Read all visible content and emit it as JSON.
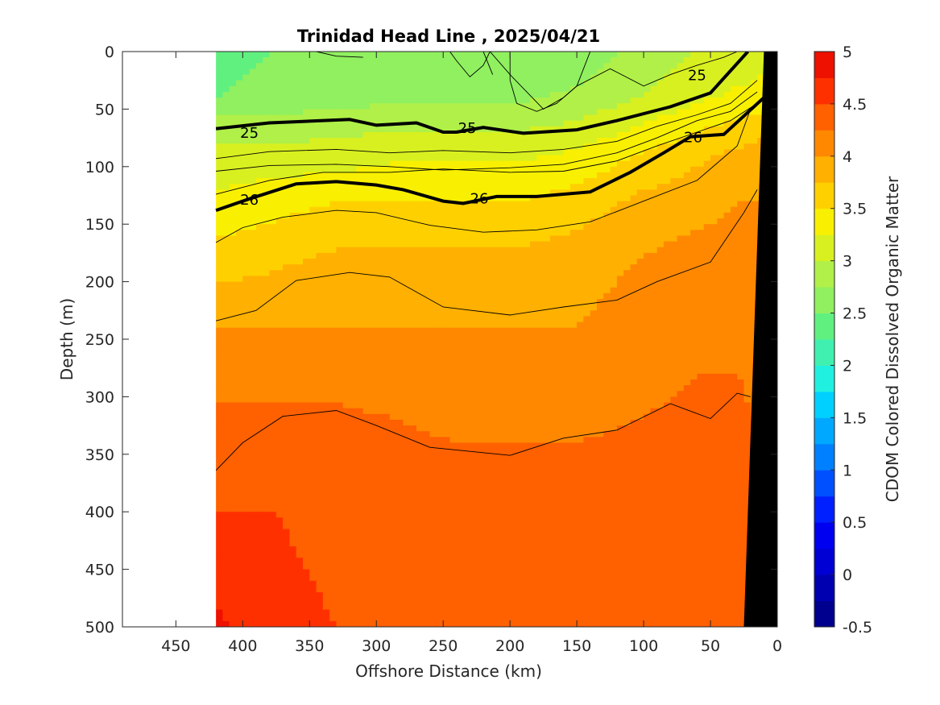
{
  "chart_data": {
    "type": "heatmap",
    "title": "Trinidad Head Line , 2025/04/21",
    "xlabel": "Offshore Distance (km)",
    "ylabel": "Depth (m)",
    "xlim": [
      490,
      0
    ],
    "ylim": [
      0,
      500
    ],
    "x_reversed": true,
    "y_reversed": true,
    "xticks": [
      450,
      400,
      350,
      300,
      250,
      200,
      150,
      100,
      50,
      0
    ],
    "yticks": [
      0,
      50,
      100,
      150,
      200,
      250,
      300,
      350,
      400,
      450,
      500
    ],
    "colorbar": {
      "label": "CDOM Colored Dissolved Organic Matter",
      "range": [
        -0.5,
        5
      ],
      "ticks": [
        "-0.5",
        "0",
        "0.5",
        "1",
        "1.5",
        "2",
        "2.5",
        "3",
        "3.5",
        "4",
        "4.5",
        "5"
      ],
      "levels": [
        -0.5,
        -0.25,
        0,
        0.25,
        0.5,
        0.75,
        1,
        1.25,
        1.5,
        1.75,
        2,
        2.25,
        2.5,
        2.75,
        3,
        3.25,
        3.5,
        3.75,
        4,
        4.25,
        4.5,
        4.75,
        5
      ],
      "colors": [
        "#00008f",
        "#0000b0",
        "#0000d4",
        "#0000f0",
        "#0020ff",
        "#0050ff",
        "#0080ff",
        "#00a8ff",
        "#00d0ff",
        "#20f0e0",
        "#40f0b0",
        "#60f080",
        "#90f060",
        "#b0f048",
        "#d8f020",
        "#f8f000",
        "#ffd000",
        "#ffb000",
        "#ff8800",
        "#ff6000",
        "#ff3000",
        "#ee1000",
        "#c00000"
      ]
    },
    "field_rows": [
      {
        "depth": 0,
        "x": [
          420,
          375,
          330,
          285,
          240,
          195,
          150,
          105,
          60,
          30,
          10
        ],
        "values": [
          2.4,
          2.5,
          2.6,
          2.6,
          2.6,
          2.6,
          2.6,
          2.8,
          3.0,
          3.1,
          3.2
        ]
      },
      {
        "depth": 40,
        "x": [
          420,
          375,
          330,
          285,
          240,
          195,
          150,
          105,
          60,
          30,
          10
        ],
        "values": [
          2.5,
          2.6,
          2.6,
          2.7,
          2.7,
          2.7,
          2.8,
          3.0,
          3.2,
          3.3,
          3.3
        ]
      },
      {
        "depth": 60,
        "x": [
          420,
          375,
          330,
          285,
          240,
          195,
          150,
          105,
          60,
          30,
          10
        ],
        "values": [
          2.8,
          2.8,
          2.9,
          2.9,
          2.9,
          2.9,
          3.0,
          3.2,
          3.4,
          3.5,
          3.6
        ]
      },
      {
        "depth": 90,
        "x": [
          420,
          375,
          330,
          285,
          240,
          195,
          150,
          105,
          60,
          30,
          10
        ],
        "values": [
          3.1,
          3.1,
          3.1,
          3.2,
          3.2,
          3.2,
          3.3,
          3.5,
          3.7,
          3.8,
          3.9
        ]
      },
      {
        "depth": 130,
        "x": [
          420,
          375,
          330,
          285,
          240,
          195,
          150,
          105,
          60,
          30,
          10
        ],
        "values": [
          3.3,
          3.4,
          3.5,
          3.5,
          3.5,
          3.5,
          3.6,
          3.8,
          3.9,
          4.0,
          4.0
        ]
      },
      {
        "depth": 180,
        "x": [
          420,
          375,
          330,
          285,
          240,
          195,
          150,
          105,
          60,
          30,
          10
        ],
        "values": [
          3.6,
          3.7,
          3.8,
          3.8,
          3.8,
          3.8,
          3.9,
          4.0,
          4.1,
          4.1,
          4.1
        ]
      },
      {
        "depth": 240,
        "x": [
          420,
          375,
          330,
          285,
          240,
          195,
          150,
          105,
          60,
          30,
          10
        ],
        "values": [
          4.0,
          4.0,
          4.0,
          4.0,
          4.0,
          4.0,
          4.0,
          4.1,
          4.2,
          4.2,
          4.2
        ]
      },
      {
        "depth": 320,
        "x": [
          420,
          375,
          330,
          285,
          240,
          195,
          150,
          105,
          60,
          30,
          10
        ],
        "values": [
          4.3,
          4.3,
          4.3,
          4.25,
          4.2,
          4.2,
          4.2,
          4.25,
          4.3,
          4.3,
          4.2
        ]
      },
      {
        "depth": 400,
        "x": [
          420,
          375,
          330,
          285,
          240,
          195,
          150,
          105,
          60,
          30,
          10
        ],
        "values": [
          4.5,
          4.5,
          4.4,
          4.4,
          4.4,
          4.4,
          4.4,
          4.4,
          4.45,
          4.4,
          4.3
        ]
      },
      {
        "depth": 500,
        "x": [
          420,
          375,
          330,
          285,
          240,
          195,
          150,
          105,
          60,
          30,
          10
        ],
        "values": [
          4.8,
          4.6,
          4.5,
          4.5,
          4.5,
          4.5,
          4.5,
          4.5,
          4.5,
          4.5,
          4.4
        ]
      }
    ],
    "data_extent_x": [
      420,
      10
    ],
    "bathymetry": [
      [
        25,
        500
      ],
      [
        10,
        0
      ],
      [
        0,
        0
      ],
      [
        0,
        500
      ]
    ],
    "contours_bold": [
      {
        "label": "25",
        "x": [
          420,
          380,
          320,
          300,
          270,
          250,
          240,
          220,
          190,
          150,
          120,
          80,
          50,
          22
        ],
        "y": [
          67,
          62,
          59,
          64,
          62,
          70,
          70,
          66,
          71,
          68,
          60,
          48,
          36,
          0
        ],
        "labels_at": [
          [
            395,
            70
          ],
          [
            232,
            66
          ],
          [
            60,
            20
          ]
        ]
      },
      {
        "label": "26",
        "x": [
          420,
          395,
          360,
          330,
          300,
          280,
          250,
          235,
          210,
          180,
          140,
          110,
          85,
          65,
          40,
          10
        ],
        "y": [
          138,
          128,
          115,
          113,
          116,
          120,
          130,
          132,
          126,
          126,
          122,
          105,
          88,
          74,
          72,
          40
        ],
        "labels_at": [
          [
            395,
            128
          ],
          [
            223,
            127
          ],
          [
            63,
            74
          ]
        ]
      }
    ],
    "contours_thin": [
      {
        "x": [
          420,
          380,
          330,
          290,
          250,
          200,
          160,
          120,
          90,
          60,
          35,
          15
        ],
        "y": [
          93,
          87,
          85,
          88,
          86,
          88,
          85,
          78,
          65,
          55,
          45,
          25
        ]
      },
      {
        "x": [
          420,
          380,
          330,
          290,
          250,
          200,
          160,
          120,
          90,
          60,
          35,
          15
        ],
        "y": [
          104,
          99,
          98,
          100,
          103,
          101,
          98,
          88,
          75,
          60,
          52,
          35
        ]
      },
      {
        "x": [
          420,
          380,
          340,
          290,
          250,
          200,
          160,
          120,
          90,
          60,
          35,
          15
        ],
        "y": [
          124,
          112,
          105,
          105,
          102,
          105,
          104,
          95,
          82,
          70,
          60,
          45
        ]
      },
      {
        "x": [
          420,
          400,
          370,
          330,
          300,
          260,
          220,
          180,
          140,
          100,
          60,
          30,
          20
        ],
        "y": [
          166,
          153,
          144,
          138,
          140,
          151,
          157,
          155,
          148,
          130,
          112,
          82,
          50
        ]
      },
      {
        "x": [
          420,
          390,
          360,
          320,
          290,
          250,
          200,
          160,
          120,
          90,
          50,
          25,
          15
        ],
        "y": [
          234,
          225,
          199,
          192,
          196,
          222,
          229,
          222,
          216,
          200,
          183,
          140,
          120
        ]
      },
      {
        "x": [
          420,
          400,
          370,
          330,
          300,
          260,
          200,
          160,
          120,
          80,
          50,
          30,
          20
        ],
        "y": [
          364,
          340,
          317,
          312,
          325,
          344,
          351,
          336,
          329,
          306,
          319,
          297,
          300
        ]
      }
    ],
    "contours_top": [
      {
        "x": [
          345,
          330,
          310
        ],
        "y": [
          0,
          4,
          5
        ]
      },
      {
        "x": [
          245,
          240,
          230,
          220,
          215,
          200,
          175,
          160,
          150,
          140
        ],
        "y": [
          0,
          8,
          22,
          12,
          0,
          20,
          50,
          40,
          30,
          0
        ]
      },
      {
        "x": [
          220,
          213
        ],
        "y": [
          0,
          20
        ]
      },
      {
        "x": [
          200,
          200,
          195,
          180,
          165,
          150,
          125,
          100,
          80,
          60,
          40,
          30
        ],
        "y": [
          0,
          25,
          45,
          52,
          45,
          30,
          15,
          30,
          20,
          12,
          5,
          0
        ]
      }
    ]
  }
}
